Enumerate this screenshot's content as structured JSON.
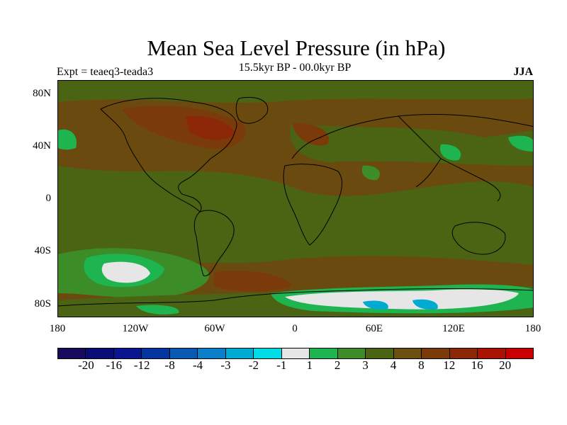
{
  "title": "Mean Sea Level Pressure (in hPa)",
  "subtitle": "15.5kyr BP - 00.0kyr BP",
  "left_label": "Expt = teaeq3-teada3",
  "right_label": "JJA",
  "lat_ticks": [
    "80N",
    "40N",
    "0",
    "40S",
    "80S"
  ],
  "lon_ticks": [
    "180",
    "120W",
    "60W",
    "0",
    "60E",
    "120E",
    "180"
  ],
  "colorbar": {
    "colors": [
      "#1a0a5e",
      "#0a0c78",
      "#0a1690",
      "#0535a0",
      "#0a5ab4",
      "#0a7ec8",
      "#00aad2",
      "#00dce6",
      "#e6e6e6",
      "#1eb450",
      "#3c8c28",
      "#4b6414",
      "#6b5010",
      "#7a3a0a",
      "#8c2808",
      "#aa1204",
      "#c80000"
    ],
    "labels": [
      "-20",
      "-16",
      "-12",
      "-8",
      "-4",
      "-3",
      "-2",
      "-1",
      "1",
      "2",
      "3",
      "4",
      "8",
      "12",
      "16",
      "20"
    ]
  }
}
